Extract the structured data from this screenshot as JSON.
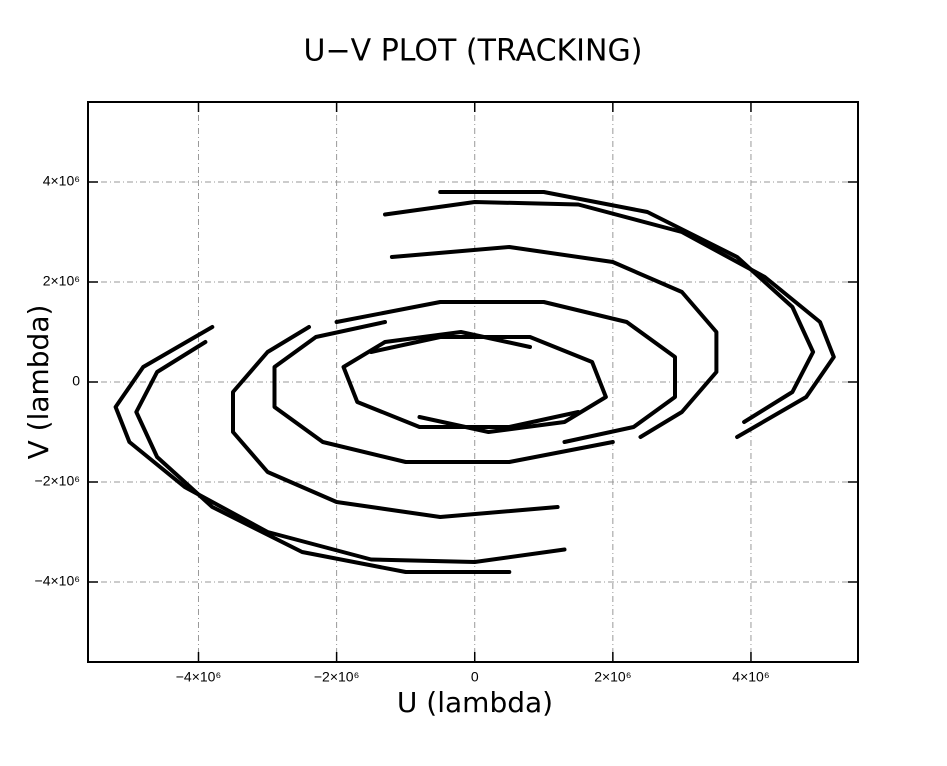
{
  "chart_data": {
    "type": "line",
    "title": "U−V PLOT (TRACKING)",
    "x_label": "U (lambda)",
    "y_label": "V (lambda)",
    "color": "#000000",
    "grid": true,
    "xlim": [
      -5600000,
      5550000
    ],
    "ylim": [
      -5600000,
      5600000
    ],
    "xticks": [
      {
        "value": -4000000,
        "label": "−4×10⁶"
      },
      {
        "value": -2000000,
        "label": "−2×10⁶"
      },
      0,
      {
        "value": 2000000,
        "label": "2×10⁶"
      },
      {
        "value": 4000000,
        "label": "4×10⁶"
      }
    ],
    "yticks": [
      {
        "value": -4000000,
        "label": "−4×10⁶"
      },
      {
        "value": -2000000,
        "label": "−2×10⁶"
      },
      0,
      {
        "value": 2000000,
        "label": "2×10⁶"
      },
      {
        "value": 4000000,
        "label": "4×10⁶"
      }
    ],
    "series": [
      {
        "x": [
          -1300000,
          0,
          1500000,
          3000000,
          4200000,
          5000000,
          5200000,
          4800000,
          3800000
        ],
        "values": [
          3350000,
          3600000,
          3550000,
          3000000,
          2100000,
          1200000,
          500000,
          -300000,
          -1100000
        ]
      },
      {
        "x": [
          -500000,
          1000000,
          2500000,
          3800000,
          4600000,
          4900000,
          4600000,
          3900000
        ],
        "values": [
          3800000,
          3800000,
          3400000,
          2500000,
          1500000,
          600000,
          -200000,
          -800000
        ]
      },
      {
        "x": [
          -1200000,
          500000,
          2000000,
          3000000,
          3500000,
          3500000,
          3000000,
          2400000
        ],
        "values": [
          2500000,
          2700000,
          2400000,
          1800000,
          1000000,
          200000,
          -600000,
          -1100000
        ]
      },
      {
        "x": [
          -2000000,
          -500000,
          1000000,
          2200000,
          2900000,
          2900000,
          2300000,
          1300000
        ],
        "values": [
          1200000,
          1600000,
          1600000,
          1200000,
          500000,
          -300000,
          -900000,
          -1200000
        ]
      },
      {
        "x": [
          -1500000,
          -500000,
          800000,
          1700000,
          1900000,
          1300000,
          200000,
          -800000
        ],
        "values": [
          600000,
          900000,
          900000,
          400000,
          -300000,
          -800000,
          -1000000,
          -700000
        ]
      },
      {
        "x": [
          1300000,
          0,
          -1500000,
          -3000000,
          -4200000,
          -5000000,
          -5200000,
          -4800000,
          -3800000
        ],
        "values": [
          -3350000,
          -3600000,
          -3550000,
          -3000000,
          -2100000,
          -1200000,
          -500000,
          300000,
          1100000
        ]
      },
      {
        "x": [
          500000,
          -1000000,
          -2500000,
          -3800000,
          -4600000,
          -4900000,
          -4600000,
          -3900000
        ],
        "values": [
          -3800000,
          -3800000,
          -3400000,
          -2500000,
          -1500000,
          -600000,
          200000,
          800000
        ]
      },
      {
        "x": [
          1200000,
          -500000,
          -2000000,
          -3000000,
          -3500000,
          -3500000,
          -3000000,
          -2400000
        ],
        "values": [
          -2500000,
          -2700000,
          -2400000,
          -1800000,
          -1000000,
          -200000,
          600000,
          1100000
        ]
      },
      {
        "x": [
          2000000,
          500000,
          -1000000,
          -2200000,
          -2900000,
          -2900000,
          -2300000,
          -1300000
        ],
        "values": [
          -1200000,
          -1600000,
          -1600000,
          -1200000,
          -500000,
          300000,
          900000,
          1200000
        ]
      },
      {
        "x": [
          1500000,
          500000,
          -800000,
          -1700000,
          -1900000,
          -1300000,
          -200000,
          800000
        ],
        "values": [
          -600000,
          -900000,
          -900000,
          -400000,
          300000,
          800000,
          1000000,
          700000
        ]
      }
    ]
  }
}
